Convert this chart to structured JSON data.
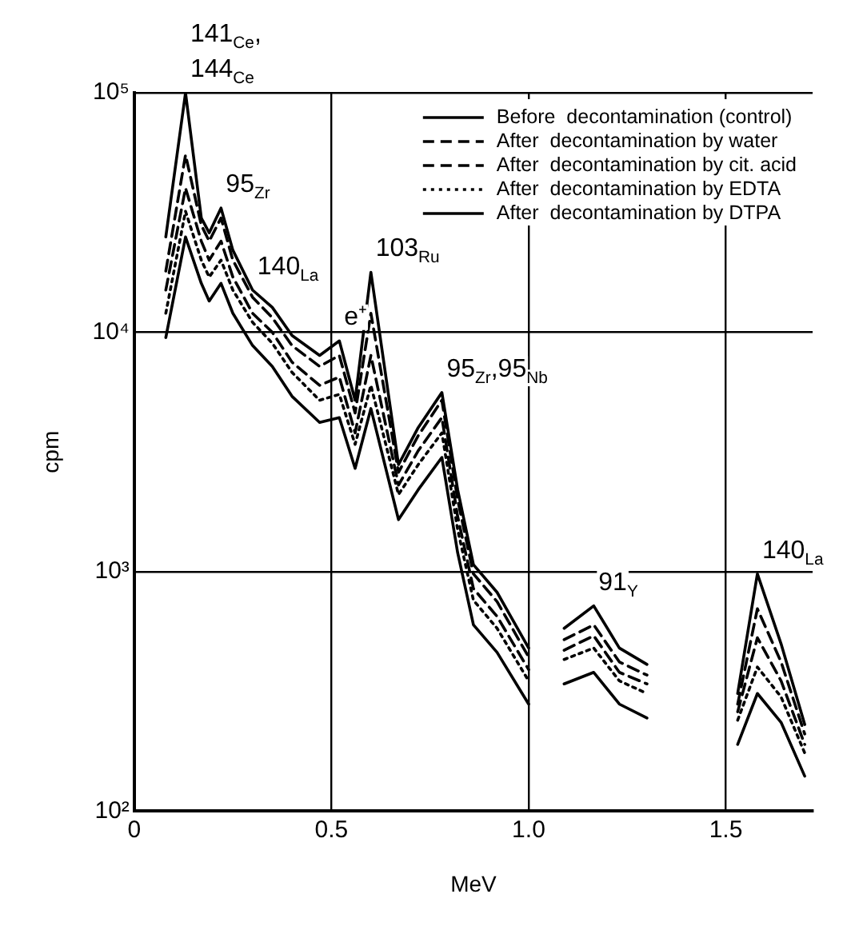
{
  "chart_data": {
    "type": "line",
    "xlabel": "MeV",
    "ylabel": "cpm",
    "log": "y",
    "grid": true,
    "legend": "top right",
    "marker": "none",
    "xlim": [
      0,
      1.72
    ],
    "xticks": [
      0,
      0.5,
      {
        "value": 1,
        "label": "1.0"
      },
      1.5
    ],
    "ylim": [
      100,
      100000
    ],
    "yticks": [
      {
        "value": 100,
        "label": "10²"
      },
      {
        "value": 1000,
        "label": "10³"
      },
      {
        "value": 10000,
        "label": "10⁴"
      },
      {
        "value": 100000,
        "label": "10⁵"
      }
    ],
    "x": [
      0.08,
      0.13,
      0.17,
      0.19,
      0.22,
      0.25,
      0.3,
      0.35,
      0.4,
      0.47,
      0.52,
      0.56,
      0.6,
      0.67,
      0.72,
      0.78,
      0.82,
      0.86,
      0.92,
      1.0,
      1.05,
      1.09,
      1.165,
      1.23,
      1.3,
      1.4,
      1.53,
      1.58,
      1.64,
      1.7
    ],
    "series": [
      {
        "name": "Before  decontamination (control)",
        "color": "#000000",
        "line_style": "solid",
        "values": [
          25000,
          100000,
          30000,
          26000,
          33000,
          22000,
          15000,
          12700,
          9700,
          8000,
          9200,
          5200,
          17800,
          2800,
          4000,
          5600,
          2200,
          1070,
          820,
          480,
          null,
          580,
          720,
          480,
          410,
          null,
          310,
          980,
          500,
          230
        ]
      },
      {
        "name": "After  decontamination by water",
        "color": "#000000",
        "line_style": "dashed",
        "values": [
          18000,
          55000,
          28000,
          24000,
          30000,
          20000,
          14000,
          11500,
          8800,
          7200,
          8000,
          4600,
          12000,
          2600,
          3700,
          5200,
          2000,
          980,
          750,
          440,
          null,
          520,
          600,
          420,
          370,
          null,
          280,
          700,
          420,
          210
        ]
      },
      {
        "name": "After  decontamination by cit. acid",
        "color": "#000000",
        "line_style": "dashed",
        "values": [
          15000,
          40000,
          24000,
          20000,
          24000,
          17000,
          12000,
          10000,
          7500,
          6000,
          6500,
          3800,
          8000,
          2300,
          3200,
          4400,
          1700,
          850,
          650,
          390,
          null,
          470,
          540,
          380,
          340,
          null,
          260,
          530,
          350,
          190
        ]
      },
      {
        "name": "After  decontamination by EDTA",
        "color": "#000000",
        "line_style": "dotted",
        "values": [
          12000,
          32000,
          20000,
          17000,
          20000,
          15000,
          11000,
          9000,
          6800,
          5200,
          5500,
          3400,
          6000,
          2100,
          2800,
          3800,
          1500,
          760,
          580,
          350,
          null,
          430,
          480,
          350,
          310,
          null,
          240,
          400,
          300,
          175
        ]
      },
      {
        "name": "After  decontamination by DTPA",
        "color": "#000000",
        "line_style": "solid",
        "values": [
          9500,
          25000,
          16000,
          13500,
          16000,
          12000,
          8800,
          7200,
          5400,
          4200,
          4400,
          2700,
          4800,
          1650,
          2200,
          3000,
          1200,
          600,
          460,
          280,
          null,
          340,
          380,
          280,
          245,
          null,
          190,
          310,
          235,
          140
        ]
      }
    ],
    "annotations": [
      {
        "text": "141$_{Ce}$,\n144$_{Ce}$",
        "x": 0.13,
        "y": 100000
      },
      {
        "text": "95$_{Zr}$",
        "x": 0.22,
        "y": 33000
      },
      {
        "text": "140$_{La}$",
        "x": 0.3,
        "y": 15000
      },
      {
        "text": "e⁺",
        "x": 0.52,
        "y": 9200
      },
      {
        "text": "103$_{Ru}$",
        "x": 0.6,
        "y": 17800
      },
      {
        "text": "95$_{Zr}$,95$_{Nb}$",
        "x": 0.78,
        "y": 5600
      },
      {
        "text": "91$_{Y}$",
        "x": 1.165,
        "y": 720
      },
      {
        "text": "140$_{La}$",
        "x": 1.58,
        "y": 980
      }
    ]
  }
}
